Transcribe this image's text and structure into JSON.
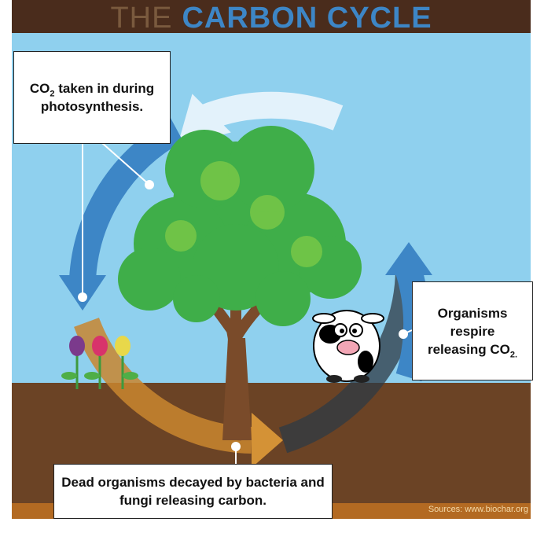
{
  "title": {
    "prefix": "THE",
    "main": "CARBON CYCLE"
  },
  "callouts": [
    {
      "before": "CO",
      "sub": "2",
      "after": " taken in during photosynthesis."
    },
    {
      "before": "Organisms respire releasing CO",
      "sub": "2."
    },
    {
      "text": "Dead organisms decayed by bacteria and fungi releasing carbon."
    }
  ],
  "source": "Sources: www.biochar.org"
}
